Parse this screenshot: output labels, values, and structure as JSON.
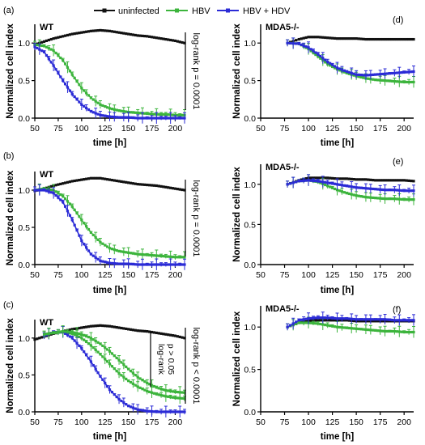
{
  "legend": {
    "position": "top-center",
    "entries": [
      {
        "label": "uninfected",
        "color": "#111111"
      },
      {
        "label": "HBV",
        "color": "#3cb43c"
      },
      {
        "label": "HBV + HDV",
        "color": "#2b2bd6"
      }
    ]
  },
  "chart_data": [
    {
      "type": "line",
      "panel_label": "(a)",
      "title": "WT",
      "xlabel": "time [h]",
      "ylabel": "Normalized cell index",
      "xlim": [
        50,
        210
      ],
      "ylim": [
        0,
        1.25
      ],
      "xticks": [
        "50",
        "75",
        "100",
        "125",
        "150",
        "175",
        "200"
      ],
      "yticks": [
        "0.0",
        "0.5",
        "1.0"
      ],
      "annotation": "log-rank p = 0.0001",
      "series": [
        {
          "name": "uninfected",
          "color": "#111111",
          "x": [
            50,
            60,
            70,
            80,
            90,
            100,
            110,
            120,
            130,
            140,
            150,
            160,
            170,
            180,
            190,
            200,
            210
          ],
          "y": [
            0.98,
            1.02,
            1.06,
            1.09,
            1.12,
            1.14,
            1.16,
            1.17,
            1.16,
            1.14,
            1.12,
            1.1,
            1.09,
            1.07,
            1.05,
            1.03,
            1.0
          ]
        },
        {
          "name": "HBV",
          "color": "#3cb43c",
          "x": [
            50,
            60,
            70,
            80,
            90,
            100,
            110,
            120,
            130,
            140,
            150,
            160,
            170,
            180,
            190,
            200,
            210
          ],
          "y": [
            0.98,
            0.96,
            0.9,
            0.77,
            0.58,
            0.4,
            0.27,
            0.18,
            0.13,
            0.1,
            0.08,
            0.07,
            0.06,
            0.05,
            0.05,
            0.04,
            0.04
          ]
        },
        {
          "name": "HBV + HDV",
          "color": "#2b2bd6",
          "x": [
            50,
            60,
            70,
            80,
            90,
            100,
            110,
            120,
            130,
            140,
            150,
            160,
            170,
            180,
            190,
            200,
            210
          ],
          "y": [
            0.95,
            0.88,
            0.7,
            0.5,
            0.32,
            0.18,
            0.09,
            0.04,
            0.02,
            0.01,
            0.01,
            0.0,
            0.0,
            0.0,
            0.0,
            0.0,
            0.0
          ]
        }
      ]
    },
    {
      "type": "line",
      "panel_label": "(d)",
      "title": "MDA5-/-",
      "xlabel": "",
      "ylabel": "Normalized cell index",
      "xlim": [
        50,
        210
      ],
      "ylim": [
        0,
        1.25
      ],
      "xticks": [
        "50",
        "75",
        "100",
        "125",
        "150",
        "175",
        "200"
      ],
      "yticks": [
        "0.0",
        "0.5",
        "1.0"
      ],
      "annotation": "",
      "series": [
        {
          "name": "uninfected",
          "color": "#111111",
          "x": [
            78,
            90,
            100,
            110,
            120,
            130,
            140,
            150,
            160,
            170,
            180,
            190,
            200,
            210
          ],
          "y": [
            1.0,
            1.05,
            1.08,
            1.08,
            1.07,
            1.06,
            1.06,
            1.06,
            1.05,
            1.05,
            1.05,
            1.05,
            1.05,
            1.05
          ]
        },
        {
          "name": "HBV",
          "color": "#3cb43c",
          "x": [
            78,
            90,
            100,
            110,
            120,
            130,
            140,
            150,
            160,
            170,
            180,
            190,
            200,
            210
          ],
          "y": [
            1.0,
            0.99,
            0.92,
            0.82,
            0.72,
            0.65,
            0.6,
            0.56,
            0.53,
            0.51,
            0.5,
            0.49,
            0.48,
            0.48
          ]
        },
        {
          "name": "HBV + HDV",
          "color": "#2b2bd6",
          "x": [
            78,
            90,
            100,
            110,
            120,
            130,
            140,
            150,
            160,
            170,
            180,
            190,
            200,
            210
          ],
          "y": [
            1.0,
            0.99,
            0.94,
            0.85,
            0.75,
            0.67,
            0.62,
            0.58,
            0.57,
            0.58,
            0.59,
            0.6,
            0.61,
            0.62
          ]
        }
      ]
    },
    {
      "type": "line",
      "panel_label": "(b)",
      "title": "WT",
      "xlabel": "",
      "ylabel": "Normalized cell index",
      "xlim": [
        50,
        210
      ],
      "ylim": [
        0,
        1.25
      ],
      "xticks": [
        "50",
        "75",
        "100",
        "125",
        "150",
        "175",
        "200"
      ],
      "yticks": [
        "0.0",
        "0.5",
        "1.0"
      ],
      "annotation": "log-rank p = 0.0001",
      "series": [
        {
          "name": "uninfected",
          "color": "#111111",
          "x": [
            50,
            60,
            70,
            80,
            90,
            100,
            110,
            120,
            130,
            140,
            150,
            160,
            170,
            180,
            190,
            200,
            210
          ],
          "y": [
            0.99,
            1.02,
            1.06,
            1.09,
            1.12,
            1.14,
            1.16,
            1.16,
            1.14,
            1.12,
            1.1,
            1.08,
            1.07,
            1.06,
            1.04,
            1.02,
            1.0
          ]
        },
        {
          "name": "HBV",
          "color": "#3cb43c",
          "x": [
            50,
            60,
            70,
            80,
            90,
            100,
            110,
            120,
            130,
            140,
            150,
            160,
            170,
            180,
            190,
            200,
            210
          ],
          "y": [
            1.0,
            1.02,
            1.0,
            0.92,
            0.78,
            0.6,
            0.43,
            0.3,
            0.22,
            0.18,
            0.16,
            0.14,
            0.13,
            0.12,
            0.11,
            0.1,
            0.1
          ]
        },
        {
          "name": "HBV + HDV",
          "color": "#2b2bd6",
          "x": [
            50,
            60,
            70,
            80,
            90,
            100,
            110,
            120,
            130,
            140,
            150,
            160,
            170,
            180,
            190,
            200,
            210
          ],
          "y": [
            1.0,
            1.0,
            0.96,
            0.84,
            0.6,
            0.32,
            0.14,
            0.05,
            0.02,
            0.01,
            0.01,
            0.0,
            0.0,
            0.0,
            0.0,
            0.0,
            0.0
          ]
        }
      ]
    },
    {
      "type": "line",
      "panel_label": "(e)",
      "title": "MDA5-/-",
      "xlabel": "time [h]",
      "ylabel": "Normalized cell index",
      "xlim": [
        50,
        210
      ],
      "ylim": [
        0,
        1.25
      ],
      "xticks": [
        "50",
        "75",
        "100",
        "125",
        "150",
        "175",
        "200"
      ],
      "yticks": [
        "0.0",
        "0.5",
        "1.0"
      ],
      "annotation": "",
      "series": [
        {
          "name": "uninfected",
          "color": "#111111",
          "x": [
            78,
            90,
            100,
            110,
            120,
            130,
            140,
            150,
            160,
            170,
            180,
            190,
            200,
            210
          ],
          "y": [
            1.0,
            1.05,
            1.08,
            1.08,
            1.08,
            1.07,
            1.07,
            1.06,
            1.06,
            1.05,
            1.05,
            1.05,
            1.05,
            1.04
          ]
        },
        {
          "name": "HBV",
          "color": "#3cb43c",
          "x": [
            78,
            90,
            100,
            110,
            120,
            130,
            140,
            150,
            160,
            170,
            180,
            190,
            200,
            210
          ],
          "y": [
            1.0,
            1.04,
            1.05,
            1.03,
            0.98,
            0.93,
            0.89,
            0.86,
            0.84,
            0.83,
            0.82,
            0.82,
            0.81,
            0.81
          ]
        },
        {
          "name": "HBV + HDV",
          "color": "#2b2bd6",
          "x": [
            78,
            90,
            100,
            110,
            120,
            130,
            140,
            150,
            160,
            170,
            180,
            190,
            200,
            210
          ],
          "y": [
            1.0,
            1.04,
            1.05,
            1.04,
            1.02,
            1.0,
            0.98,
            0.96,
            0.95,
            0.94,
            0.93,
            0.93,
            0.92,
            0.92
          ]
        }
      ]
    },
    {
      "type": "line",
      "panel_label": "(c)",
      "title": "WT",
      "xlabel": "time [h]",
      "ylabel": "Normalized cell index",
      "xlim": [
        50,
        210
      ],
      "ylim": [
        0,
        1.25
      ],
      "xticks": [
        "50",
        "75",
        "100",
        "125",
        "150",
        "175",
        "200"
      ],
      "yticks": [
        "0.0",
        "0.5",
        "1.0"
      ],
      "annotation": "log-rank p < 0.0001",
      "annotation2": [
        "log-rank",
        "p > 0.05"
      ],
      "series": [
        {
          "name": "uninfected",
          "color": "#111111",
          "x": [
            50,
            60,
            70,
            80,
            90,
            100,
            110,
            120,
            130,
            140,
            150,
            160,
            170,
            180,
            190,
            200,
            210
          ],
          "y": [
            0.98,
            1.02,
            1.06,
            1.09,
            1.12,
            1.14,
            1.16,
            1.17,
            1.16,
            1.14,
            1.12,
            1.1,
            1.09,
            1.07,
            1.05,
            1.03,
            1.0
          ]
        },
        {
          "name": "HBV",
          "color": "#3cb43c",
          "x": [
            60,
            70,
            80,
            90,
            100,
            110,
            120,
            130,
            140,
            150,
            160,
            170,
            180,
            190,
            200,
            210
          ],
          "y": [
            1.05,
            1.07,
            1.08,
            1.06,
            1.0,
            0.9,
            0.78,
            0.65,
            0.52,
            0.42,
            0.34,
            0.28,
            0.24,
            0.21,
            0.19,
            0.18
          ]
        },
        {
          "name": "HBV + HDV",
          "color": "#2b2bd6",
          "x": [
            60,
            70,
            80,
            90,
            100,
            110,
            120,
            130,
            140,
            150,
            160,
            170,
            180,
            190,
            200,
            210
          ],
          "y": [
            1.03,
            1.08,
            1.08,
            1.0,
            0.86,
            0.68,
            0.48,
            0.3,
            0.17,
            0.08,
            0.03,
            0.01,
            0.0,
            0.0,
            0.0,
            0.0
          ]
        },
        {
          "name": "HBV (upper)",
          "color": "#3cb43c",
          "x": [
            60,
            70,
            80,
            90,
            100,
            110,
            120,
            130,
            140,
            150,
            160,
            170,
            180,
            190,
            200,
            210
          ],
          "y": [
            1.05,
            1.07,
            1.09,
            1.08,
            1.05,
            1.0,
            0.92,
            0.82,
            0.7,
            0.58,
            0.47,
            0.39,
            0.33,
            0.29,
            0.27,
            0.26
          ]
        }
      ]
    },
    {
      "type": "line",
      "panel_label": "(f)",
      "title": "MDA5-/-",
      "xlabel": "time [h]",
      "ylabel": "Normalized cell index",
      "xlim": [
        50,
        210
      ],
      "ylim": [
        0,
        1.25
      ],
      "xticks": [
        "50",
        "75",
        "100",
        "125",
        "150",
        "175",
        "200"
      ],
      "yticks": [
        "0.0",
        "0.5",
        "1.0"
      ],
      "annotation": "",
      "series": [
        {
          "name": "uninfected",
          "color": "#111111",
          "x": [
            78,
            90,
            100,
            110,
            120,
            130,
            140,
            150,
            160,
            170,
            180,
            190,
            200,
            210
          ],
          "y": [
            1.0,
            1.05,
            1.07,
            1.08,
            1.08,
            1.08,
            1.08,
            1.07,
            1.07,
            1.07,
            1.07,
            1.07,
            1.07,
            1.07
          ]
        },
        {
          "name": "HBV",
          "color": "#3cb43c",
          "x": [
            78,
            90,
            100,
            110,
            120,
            130,
            140,
            150,
            160,
            170,
            180,
            190,
            200,
            210
          ],
          "y": [
            1.0,
            1.05,
            1.05,
            1.04,
            1.02,
            1.0,
            0.99,
            0.98,
            0.97,
            0.96,
            0.95,
            0.95,
            0.94,
            0.94
          ]
        },
        {
          "name": "HBV + HDV",
          "color": "#2b2bd6",
          "x": [
            78,
            90,
            100,
            110,
            120,
            130,
            140,
            150,
            160,
            170,
            180,
            190,
            200,
            210
          ],
          "y": [
            1.0,
            1.08,
            1.1,
            1.11,
            1.11,
            1.1,
            1.1,
            1.09,
            1.09,
            1.09,
            1.09,
            1.08,
            1.08,
            1.08
          ]
        }
      ]
    }
  ]
}
